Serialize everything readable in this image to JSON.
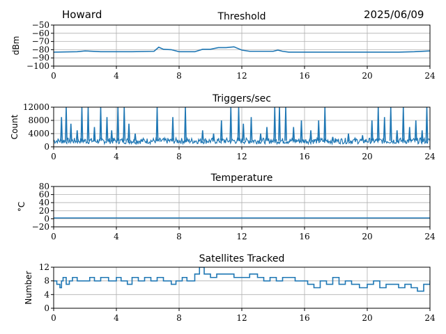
{
  "header": {
    "station": "Howard",
    "date": "2025/06/09"
  },
  "colors": {
    "series": "#1f77b4",
    "grid": "#b0b0b0",
    "axis": "#000000"
  },
  "chart_data": [
    {
      "type": "line",
      "title": "Threshold",
      "ylabel": "dBm",
      "xlim": [
        0,
        24
      ],
      "ylim": [
        -100,
        -50
      ],
      "xticks": [
        0,
        4,
        8,
        12,
        16,
        20,
        24
      ],
      "yticks": [
        -100,
        -90,
        -80,
        -70,
        -60,
        -50
      ],
      "ytick_labels": [
        "−100",
        "−90",
        "−80",
        "−70",
        "−60",
        "−50"
      ],
      "grid": true,
      "series": [
        {
          "x": [
            0,
            1.5,
            2,
            3,
            4,
            5,
            6.4,
            6.7,
            7,
            7.5,
            8,
            8.2,
            9,
            9.5,
            10,
            10.5,
            11,
            11.5,
            12,
            12.5,
            13,
            14,
            14.3,
            14.6,
            15,
            16,
            17,
            18,
            19,
            20,
            21,
            22,
            23,
            24
          ],
          "y": [
            -83,
            -82.5,
            -81.5,
            -82.5,
            -82.5,
            -82.5,
            -82,
            -77,
            -79.5,
            -80,
            -82.5,
            -82.5,
            -82.5,
            -79.5,
            -79.5,
            -77.5,
            -77.5,
            -76.5,
            -80.5,
            -82,
            -82,
            -82,
            -80.5,
            -82,
            -83,
            -83,
            -83,
            -83,
            -83,
            -83,
            -83,
            -83,
            -82.5,
            -81.5
          ]
        }
      ]
    },
    {
      "type": "line",
      "title": "Triggers/sec",
      "ylabel": "Count",
      "xlim": [
        0,
        24
      ],
      "ylim": [
        0,
        12000
      ],
      "xticks": [
        0,
        4,
        8,
        12,
        16,
        20,
        24
      ],
      "yticks": [
        0,
        4000,
        8000,
        12000
      ],
      "ytick_labels": [
        "0",
        "4000",
        "8000",
        "12000"
      ],
      "grid": true,
      "baseline": 1800,
      "spikes": [
        {
          "x": 0.5,
          "y": 9000
        },
        {
          "x": 0.8,
          "y": 12000
        },
        {
          "x": 1.1,
          "y": 7000
        },
        {
          "x": 1.5,
          "y": 5000
        },
        {
          "x": 1.8,
          "y": 12000
        },
        {
          "x": 2.2,
          "y": 12000
        },
        {
          "x": 2.6,
          "y": 6000
        },
        {
          "x": 3.0,
          "y": 12000
        },
        {
          "x": 3.4,
          "y": 9000
        },
        {
          "x": 3.7,
          "y": 5000
        },
        {
          "x": 4.1,
          "y": 12000
        },
        {
          "x": 4.5,
          "y": 12000
        },
        {
          "x": 4.8,
          "y": 7000
        },
        {
          "x": 5.2,
          "y": 4000
        },
        {
          "x": 6.6,
          "y": 12000
        },
        {
          "x": 7.6,
          "y": 9000
        },
        {
          "x": 8.4,
          "y": 12000
        },
        {
          "x": 9.5,
          "y": 5000
        },
        {
          "x": 10.2,
          "y": 4000
        },
        {
          "x": 10.7,
          "y": 8000
        },
        {
          "x": 11.3,
          "y": 12000
        },
        {
          "x": 11.8,
          "y": 12000
        },
        {
          "x": 12.1,
          "y": 7000
        },
        {
          "x": 12.6,
          "y": 9000
        },
        {
          "x": 13.2,
          "y": 4000
        },
        {
          "x": 13.6,
          "y": 6000
        },
        {
          "x": 14.1,
          "y": 12000
        },
        {
          "x": 14.4,
          "y": 12000
        },
        {
          "x": 14.8,
          "y": 12000
        },
        {
          "x": 15.3,
          "y": 6000
        },
        {
          "x": 15.8,
          "y": 8000
        },
        {
          "x": 16.4,
          "y": 5000
        },
        {
          "x": 16.9,
          "y": 8000
        },
        {
          "x": 17.3,
          "y": 12000
        },
        {
          "x": 17.8,
          "y": 3000
        },
        {
          "x": 18.8,
          "y": 4000
        },
        {
          "x": 19.7,
          "y": 3500
        },
        {
          "x": 20.3,
          "y": 8000
        },
        {
          "x": 20.7,
          "y": 12000
        },
        {
          "x": 21.1,
          "y": 9000
        },
        {
          "x": 21.5,
          "y": 12000
        },
        {
          "x": 21.9,
          "y": 5000
        },
        {
          "x": 22.3,
          "y": 12000
        },
        {
          "x": 22.7,
          "y": 6000
        },
        {
          "x": 23.1,
          "y": 8000
        },
        {
          "x": 23.5,
          "y": 5000
        },
        {
          "x": 23.8,
          "y": 12000
        }
      ]
    },
    {
      "type": "line",
      "title": "Temperature",
      "ylabel": "°C",
      "xlim": [
        0,
        24
      ],
      "ylim": [
        -20,
        80
      ],
      "xticks": [
        0,
        4,
        8,
        12,
        16,
        20,
        24
      ],
      "yticks": [
        -20,
        0,
        20,
        40,
        60,
        80
      ],
      "ytick_labels": [
        "−20",
        "0",
        "20",
        "40",
        "60",
        "80"
      ],
      "grid": true,
      "series": [
        {
          "x": [
            0,
            24
          ],
          "y": [
            2,
            2
          ]
        }
      ]
    },
    {
      "type": "line",
      "title": "Satellites Tracked",
      "ylabel": "Number",
      "xlim": [
        0,
        24
      ],
      "ylim": [
        0,
        12
      ],
      "xticks": [
        0,
        4,
        8,
        12,
        16,
        20,
        24
      ],
      "yticks": [
        0,
        4,
        8,
        12
      ],
      "ytick_labels": [
        "0",
        "4",
        "8",
        "12"
      ],
      "grid": true,
      "series": [
        {
          "x": [
            0,
            0.2,
            0.4,
            0.5,
            0.6,
            0.8,
            1.0,
            1.2,
            1.5,
            2.0,
            2.3,
            2.6,
            3.0,
            3.5,
            4.0,
            4.3,
            4.7,
            5.0,
            5.4,
            5.8,
            6.2,
            6.6,
            7.0,
            7.5,
            7.8,
            8.2,
            8.5,
            9.0,
            9.3,
            9.6,
            10.0,
            10.4,
            11.0,
            11.5,
            12.0,
            12.5,
            13.0,
            13.4,
            13.8,
            14.2,
            14.6,
            15.0,
            15.4,
            15.8,
            16.2,
            16.6,
            17.0,
            17.4,
            17.8,
            18.2,
            18.6,
            19.0,
            19.5,
            20.0,
            20.4,
            20.8,
            21.2,
            21.6,
            22.0,
            22.4,
            22.8,
            23.2,
            23.6,
            24.0
          ],
          "y": [
            8,
            7,
            6,
            8,
            9,
            7,
            8,
            9,
            8,
            8,
            9,
            8,
            9,
            8,
            9,
            8,
            7,
            9,
            8,
            9,
            8,
            9,
            8,
            7,
            8,
            9,
            8,
            10,
            12,
            10,
            9,
            10,
            10,
            9,
            9,
            10,
            9,
            8,
            9,
            8,
            9,
            9,
            8,
            8,
            7,
            6,
            8,
            7,
            9,
            7,
            8,
            7,
            6,
            7,
            8,
            6,
            7,
            7,
            6,
            7,
            6,
            5,
            7,
            8
          ]
        }
      ]
    }
  ]
}
